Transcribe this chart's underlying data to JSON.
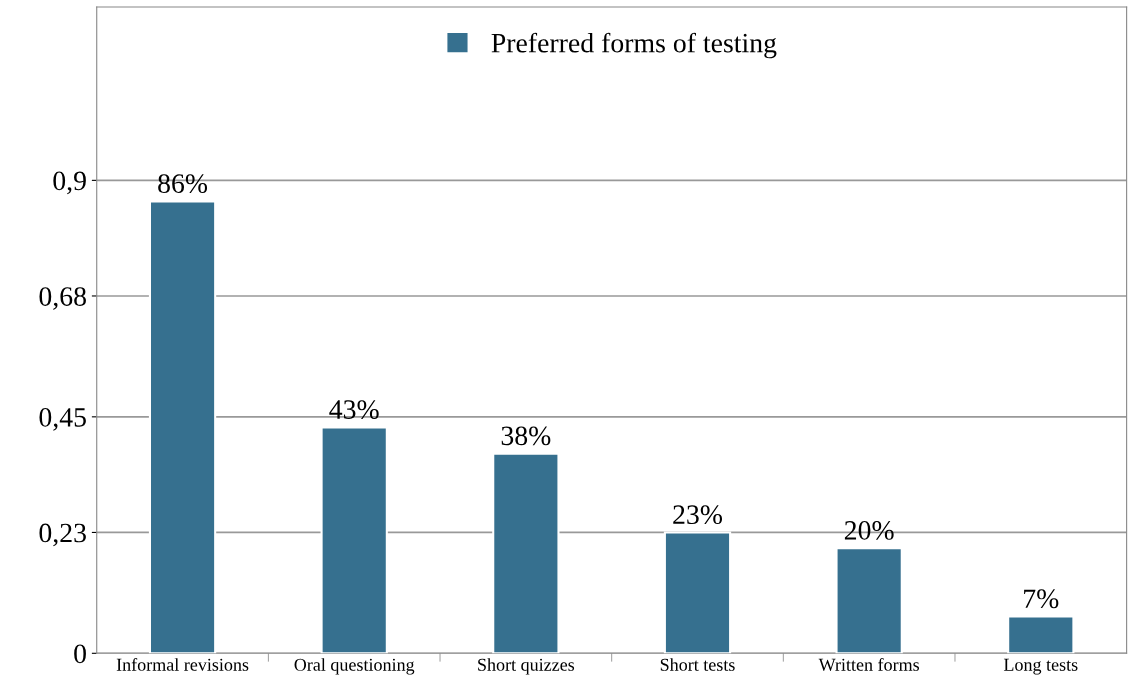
{
  "chart_data": {
    "type": "bar",
    "categories": [
      "Informal revisions",
      "Oral questioning",
      "Short quizzes",
      "Short tests",
      "Written forms",
      "Long tests"
    ],
    "series": [
      {
        "name": "Preferred forms of testing",
        "color": "#36708f",
        "values": [
          0.86,
          0.43,
          0.38,
          0.23,
          0.2,
          0.07
        ],
        "value_labels": [
          "86%",
          "43%",
          "38%",
          "23%",
          "20%",
          "7%"
        ]
      }
    ],
    "ylim": [
      0,
      1.23
    ],
    "yticks": [
      0,
      {
        "value": 0.23,
        "label": "0,23"
      },
      {
        "value": 0.45,
        "label": "0,45"
      },
      {
        "value": 0.68,
        "label": "0,68"
      },
      {
        "value": 0.9,
        "label": "0,9"
      }
    ],
    "grid": "y",
    "legend": "top"
  }
}
